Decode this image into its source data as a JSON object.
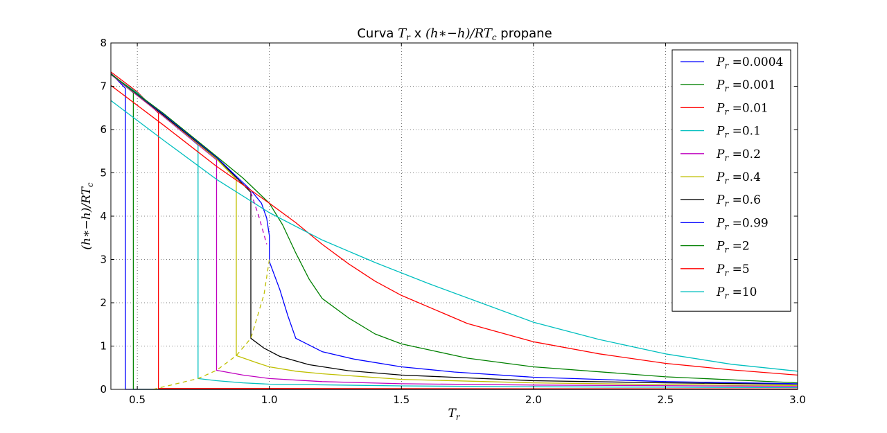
{
  "chart_data": {
    "type": "line",
    "title": "Curva T_r x (h*−h)/RT_c propane",
    "title_parts": {
      "prefix": "Curva ",
      "tr_base": "T",
      "tr_sub": "r",
      "mid": " x ",
      "expr": "(h∗−h)/RT",
      "expr_sub": "c",
      "suffix": " propane"
    },
    "xlabel": {
      "base": "T",
      "sub": "r"
    },
    "ylabel": {
      "base": "(h∗−h)/RT",
      "sub": "c"
    },
    "xlim": [
      0.4,
      3.0
    ],
    "ylim": [
      0,
      8
    ],
    "xticks": [
      0.5,
      1.0,
      1.5,
      2.0,
      2.5,
      3.0
    ],
    "xtick_labels": [
      "0.5",
      "1.0",
      "1.5",
      "2.0",
      "2.5",
      "3.0"
    ],
    "yticks": [
      0,
      1,
      2,
      3,
      4,
      5,
      6,
      7,
      8
    ],
    "ytick_labels": [
      "0",
      "1",
      "2",
      "3",
      "4",
      "5",
      "6",
      "7",
      "8"
    ],
    "grid": true,
    "legend_position": "top-right",
    "series": [
      {
        "name": "P_r = 0.0004",
        "label": "0.0004",
        "color": "#0000ff",
        "x": [
          0.4,
          0.455,
          0.455,
          3.0
        ],
        "y": [
          7.3,
          6.95,
          0.0,
          0.0
        ]
      },
      {
        "name": "P_r = 0.001",
        "label": "0.001",
        "color": "#008000",
        "x": [
          0.4,
          0.485,
          0.485,
          3.0
        ],
        "y": [
          7.28,
          6.85,
          0.0,
          0.0
        ]
      },
      {
        "name": "P_r = 0.01",
        "label": "0.01",
        "color": "#ff0000",
        "x": [
          0.4,
          0.5,
          0.58,
          0.58,
          1.0,
          2.0,
          3.0
        ],
        "y": [
          7.33,
          6.87,
          6.38,
          0.02,
          0.02,
          0.015,
          0.01
        ]
      },
      {
        "name": "P_r = 0.1",
        "label": "0.1",
        "color": "#00bfbf",
        "x": [
          0.4,
          0.5,
          0.6,
          0.7,
          0.73,
          0.73,
          0.8,
          0.9,
          1.0,
          1.5,
          2.0,
          2.5,
          3.0
        ],
        "y": [
          7.27,
          6.85,
          6.3,
          5.8,
          5.64,
          0.25,
          0.2,
          0.15,
          0.12,
          0.08,
          0.06,
          0.05,
          0.04
        ]
      },
      {
        "name": "P_r = 0.2",
        "label": "0.2",
        "color": "#bf00bf",
        "x": [
          0.4,
          0.6,
          0.8,
          0.8,
          0.9,
          1.0,
          1.2,
          1.5,
          2.0,
          3.0
        ],
        "y": [
          7.27,
          6.3,
          5.3,
          0.44,
          0.33,
          0.25,
          0.18,
          0.13,
          0.1,
          0.07
        ]
      },
      {
        "name": "P_r = 0.4",
        "label": "0.4",
        "color": "#bfbf00",
        "x": [
          0.4,
          0.6,
          0.8,
          0.875,
          0.875,
          0.95,
          1.0,
          1.1,
          1.2,
          1.5,
          2.0,
          2.5,
          3.0
        ],
        "y": [
          7.28,
          6.32,
          5.32,
          4.85,
          0.78,
          0.62,
          0.52,
          0.42,
          0.36,
          0.23,
          0.15,
          0.11,
          0.09
        ]
      },
      {
        "name": "P_r = 0.6",
        "label": "0.6",
        "color": "#000000",
        "x": [
          0.4,
          0.6,
          0.8,
          0.93,
          0.93,
          0.98,
          1.04,
          1.15,
          1.3,
          1.5,
          2.0,
          2.5,
          3.0
        ],
        "y": [
          7.29,
          6.33,
          5.35,
          4.55,
          1.18,
          0.95,
          0.76,
          0.57,
          0.43,
          0.33,
          0.2,
          0.15,
          0.12
        ]
      },
      {
        "name": "P_r = 0.99",
        "label": "0.99",
        "color": "#0000ff",
        "x": [
          0.4,
          0.6,
          0.8,
          0.93,
          0.97,
          0.99,
          1.0,
          1.0,
          1.04,
          1.07,
          1.1,
          1.2,
          1.32,
          1.5,
          1.7,
          2.0,
          2.5,
          3.0
        ],
        "y": [
          7.28,
          6.35,
          5.36,
          4.6,
          4.3,
          3.95,
          3.55,
          2.95,
          2.3,
          1.7,
          1.18,
          0.87,
          0.7,
          0.52,
          0.4,
          0.28,
          0.18,
          0.13
        ]
      },
      {
        "name": "P_r = 2",
        "label": "2",
        "color": "#008000",
        "x": [
          0.4,
          0.6,
          0.8,
          0.9,
          1.0,
          1.05,
          1.1,
          1.15,
          1.2,
          1.3,
          1.4,
          1.5,
          1.75,
          2.0,
          2.5,
          3.0
        ],
        "y": [
          7.28,
          6.37,
          5.38,
          4.88,
          4.3,
          3.8,
          3.15,
          2.55,
          2.1,
          1.65,
          1.28,
          1.05,
          0.72,
          0.52,
          0.29,
          0.15
        ]
      },
      {
        "name": "P_r = 5",
        "label": "5",
        "color": "#ff0000",
        "x": [
          0.4,
          0.6,
          0.8,
          1.0,
          1.1,
          1.2,
          1.3,
          1.4,
          1.5,
          1.75,
          2.0,
          2.25,
          2.5,
          2.75,
          3.0
        ],
        "y": [
          7.02,
          6.1,
          5.15,
          4.3,
          3.85,
          3.35,
          2.9,
          2.5,
          2.17,
          1.52,
          1.1,
          0.82,
          0.6,
          0.45,
          0.33
        ]
      },
      {
        "name": "P_r = 10",
        "label": "10",
        "color": "#00bfbf",
        "x": [
          0.4,
          0.6,
          0.8,
          1.0,
          1.2,
          1.4,
          1.6,
          1.8,
          2.0,
          2.25,
          2.5,
          2.75,
          3.0
        ],
        "y": [
          6.67,
          5.75,
          4.85,
          4.08,
          3.45,
          2.93,
          2.45,
          2.0,
          1.55,
          1.15,
          0.82,
          0.58,
          0.42
        ]
      }
    ],
    "saturation_dome": [
      {
        "color": "#bfbf00",
        "dashed": true,
        "x": [
          0.56,
          0.73,
          0.8,
          0.875,
          0.93,
          0.98,
          1.0
        ],
        "y": [
          0.0,
          0.25,
          0.44,
          0.78,
          1.18,
          2.2,
          3.0
        ]
      },
      {
        "color": "#bf00bf",
        "dashed": true,
        "x": [
          0.93,
          0.96,
          0.99
        ],
        "y": [
          4.55,
          4.0,
          3.35
        ]
      }
    ]
  }
}
